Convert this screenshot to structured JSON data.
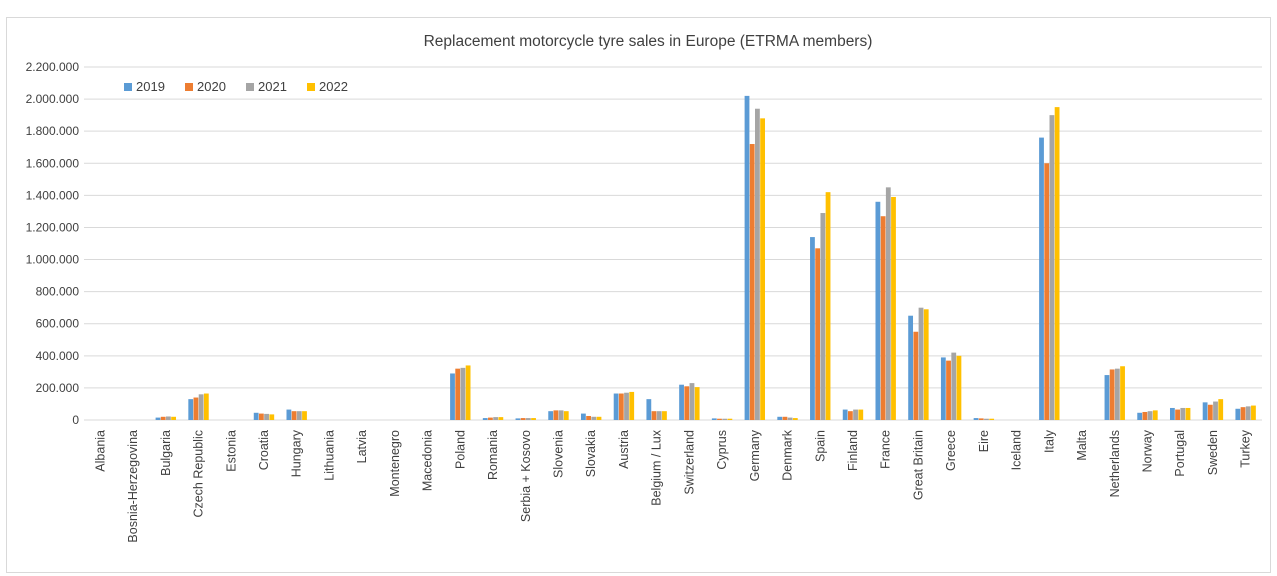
{
  "chart_data": {
    "type": "bar",
    "title": "Replacement motorcycle tyre sales in Europe (ETRMA members)",
    "xlabel": "",
    "ylabel": "",
    "ylim": [
      0,
      2200000
    ],
    "y_tick_step": 200000,
    "y_tick_labels": [
      "0",
      "200.000",
      "400.000",
      "600.000",
      "800.000",
      "1.000.000",
      "1.200.000",
      "1.400.000",
      "1.600.000",
      "1.800.000",
      "2.000.000",
      "2.200.000"
    ],
    "grid": true,
    "legend_position": "top-left",
    "categories": [
      "Albania",
      "Bosnia-Herzegovina",
      "Bulgaria",
      "Czech Republic",
      "Estonia",
      "Croatia",
      "Hungary",
      "Lithuania",
      "Latvia",
      "Montenegro",
      "Macedonia",
      "Poland",
      "Romania",
      "Serbia + Kosovo",
      "Slovenia",
      "Slovakia",
      "Austria",
      "Belgium / Lux",
      "Switzerland",
      "Cyprus",
      "Germany",
      "Denmark",
      "Spain",
      "Finland",
      "France",
      "Great Britain",
      "Greece",
      "Eire",
      "Iceland",
      "Italy",
      "Malta",
      "Netherlands",
      "Norway",
      "Portugal",
      "Sweden",
      "Turkey"
    ],
    "series": [
      {
        "name": "2019",
        "color": "#5b9bd5",
        "values": [
          0,
          0,
          15000,
          130000,
          0,
          45000,
          65000,
          0,
          0,
          0,
          0,
          290000,
          12000,
          10000,
          55000,
          40000,
          165000,
          130000,
          220000,
          10000,
          2020000,
          20000,
          1140000,
          65000,
          1360000,
          650000,
          390000,
          12000,
          0,
          1760000,
          0,
          280000,
          45000,
          75000,
          110000,
          70000
        ]
      },
      {
        "name": "2020",
        "color": "#ed7d31",
        "values": [
          0,
          0,
          20000,
          140000,
          0,
          40000,
          55000,
          0,
          0,
          0,
          0,
          320000,
          15000,
          12000,
          60000,
          25000,
          165000,
          55000,
          210000,
          8000,
          1720000,
          20000,
          1070000,
          55000,
          1270000,
          550000,
          370000,
          10000,
          0,
          1600000,
          0,
          315000,
          50000,
          65000,
          95000,
          80000
        ]
      },
      {
        "name": "2021",
        "color": "#a5a5a5",
        "values": [
          0,
          0,
          22000,
          160000,
          0,
          38000,
          55000,
          0,
          0,
          0,
          0,
          325000,
          18000,
          12000,
          60000,
          20000,
          170000,
          55000,
          230000,
          8000,
          1940000,
          15000,
          1290000,
          65000,
          1450000,
          700000,
          420000,
          8000,
          0,
          1900000,
          0,
          320000,
          55000,
          75000,
          115000,
          85000
        ]
      },
      {
        "name": "2022",
        "color": "#ffc000",
        "values": [
          0,
          0,
          20000,
          165000,
          0,
          35000,
          55000,
          0,
          0,
          0,
          0,
          340000,
          18000,
          12000,
          55000,
          20000,
          175000,
          55000,
          205000,
          8000,
          1880000,
          12000,
          1420000,
          65000,
          1390000,
          690000,
          400000,
          8000,
          0,
          1950000,
          0,
          335000,
          60000,
          75000,
          130000,
          90000
        ]
      }
    ]
  }
}
